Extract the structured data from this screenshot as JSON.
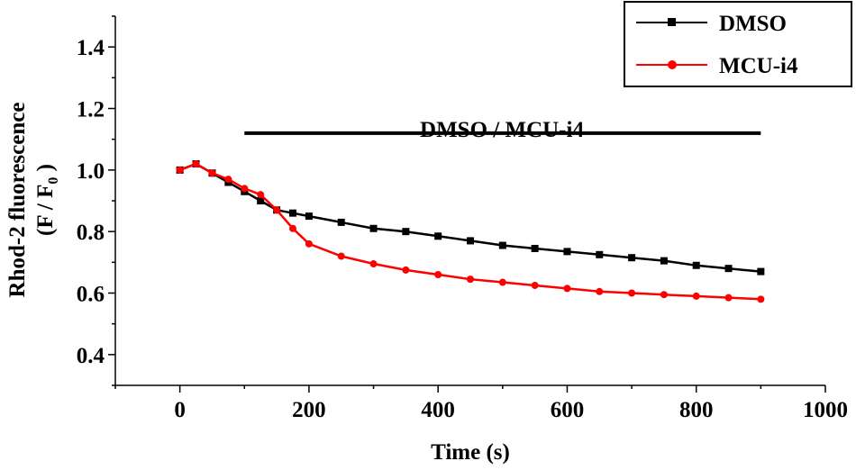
{
  "chart_data": {
    "type": "line",
    "title": "",
    "xlabel": "Time (s)",
    "ylabel_line1": "Rhod-2 fluorescence",
    "ylabel_line2": "(F / F",
    "ylabel_sub": "0",
    "ylabel_close": " )",
    "xlim": [
      -100,
      1000
    ],
    "ylim": [
      0.3,
      1.5
    ],
    "x_ticks": [
      0,
      200,
      400,
      600,
      800,
      1000
    ],
    "y_ticks": [
      0.4,
      0.6,
      0.8,
      1.0,
      1.2,
      1.4
    ],
    "y_tick_labels": [
      "0.4",
      "0.6",
      "0.8",
      "1.0",
      "1.2",
      "1.4"
    ],
    "grid": false,
    "legend_position": "top-right",
    "annotation": {
      "text": "DMSO / MCU-i4",
      "x_start": 100,
      "x_end": 900,
      "y": 1.12
    },
    "series": [
      {
        "name": "DMSO",
        "color": "#000000",
        "marker": "square",
        "x": [
          0,
          25,
          50,
          75,
          100,
          125,
          150,
          175,
          200,
          250,
          300,
          350,
          400,
          450,
          500,
          550,
          600,
          650,
          700,
          750,
          800,
          850,
          900
        ],
        "y": [
          1.0,
          1.02,
          0.99,
          0.96,
          0.93,
          0.9,
          0.87,
          0.86,
          0.85,
          0.83,
          0.81,
          0.8,
          0.785,
          0.77,
          0.755,
          0.745,
          0.735,
          0.725,
          0.715,
          0.705,
          0.69,
          0.68,
          0.67
        ]
      },
      {
        "name": "MCU-i4",
        "color": "#ff0000",
        "marker": "circle",
        "x": [
          0,
          25,
          50,
          75,
          100,
          125,
          150,
          175,
          200,
          250,
          300,
          350,
          400,
          450,
          500,
          550,
          600,
          650,
          700,
          750,
          800,
          850,
          900
        ],
        "y": [
          1.0,
          1.02,
          0.99,
          0.97,
          0.94,
          0.92,
          0.87,
          0.81,
          0.76,
          0.72,
          0.695,
          0.675,
          0.66,
          0.645,
          0.635,
          0.625,
          0.615,
          0.605,
          0.6,
          0.595,
          0.59,
          0.585,
          0.58
        ]
      }
    ]
  }
}
